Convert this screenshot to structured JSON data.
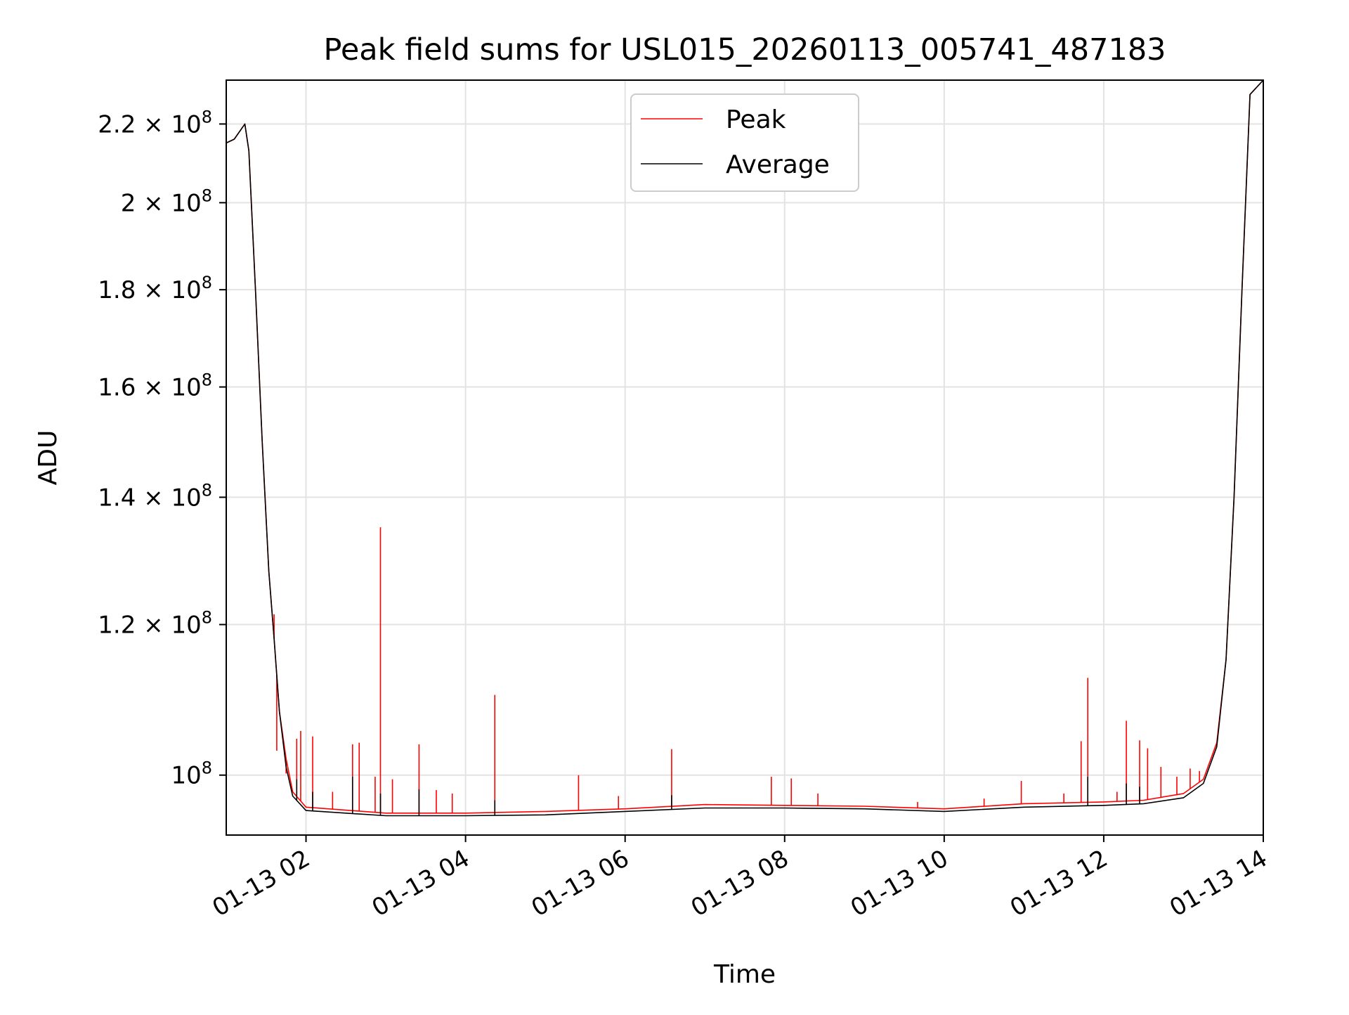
{
  "chart_data": {
    "type": "line",
    "title": "Peak field sums for USL015_20260113_005741_487183",
    "xlabel": "Time",
    "ylabel": "ADU",
    "x_domain": [
      "01-13 01:00",
      "01-13 14:00"
    ],
    "ylim": [
      93000000,
      232000000
    ],
    "y_scale": "log",
    "grid": true,
    "legend_position": "top-center",
    "x_ticks": [
      {
        "value": "01-13 02:00",
        "label": "01-13 02"
      },
      {
        "value": "01-13 04:00",
        "label": "01-13 04"
      },
      {
        "value": "01-13 06:00",
        "label": "01-13 06"
      },
      {
        "value": "01-13 08:00",
        "label": "01-13 08"
      },
      {
        "value": "01-13 10:00",
        "label": "01-13 10"
      },
      {
        "value": "01-13 12:00",
        "label": "01-13 12"
      },
      {
        "value": "01-13 14:00",
        "label": "01-13 14"
      }
    ],
    "y_ticks": [
      {
        "value": 100000000,
        "mantissa": "",
        "exponent": "8"
      },
      {
        "value": 120000000,
        "mantissa": "1.2",
        "exponent": "8"
      },
      {
        "value": 140000000,
        "mantissa": "1.4",
        "exponent": "8"
      },
      {
        "value": 160000000,
        "mantissa": "1.6",
        "exponent": "8"
      },
      {
        "value": 180000000,
        "mantissa": "1.8",
        "exponent": "8"
      },
      {
        "value": 200000000,
        "mantissa": "2",
        "exponent": "8"
      },
      {
        "value": 220000000,
        "mantissa": "2.2",
        "exponent": "8"
      }
    ],
    "series": [
      {
        "name": "Peak",
        "color": "#ff0000",
        "points": [
          [
            "01-13 01:00",
            215000000
          ],
          [
            "01-13 01:06",
            216000000
          ],
          [
            "01-13 01:12",
            219000000
          ],
          [
            "01-13 01:14",
            220000000
          ],
          [
            "01-13 01:17",
            213000000
          ],
          [
            "01-13 01:22",
            180000000
          ],
          [
            "01-13 01:27",
            150000000
          ],
          [
            "01-13 01:32",
            128000000
          ],
          [
            "01-13 01:36",
            118000000
          ],
          [
            "01-13 01:40",
            108000000
          ],
          [
            "01-13 01:45",
            102000000
          ],
          [
            "01-13 01:50",
            98000000
          ],
          [
            "01-13 02:00",
            96200000
          ],
          [
            "01-13 03:00",
            95500000
          ],
          [
            "01-13 04:00",
            95500000
          ],
          [
            "01-13 05:00",
            95700000
          ],
          [
            "01-13 06:00",
            96000000
          ],
          [
            "01-13 07:00",
            96500000
          ],
          [
            "01-13 08:00",
            96400000
          ],
          [
            "01-13 09:00",
            96300000
          ],
          [
            "01-13 10:00",
            96000000
          ],
          [
            "01-13 11:00",
            96600000
          ],
          [
            "01-13 12:00",
            96800000
          ],
          [
            "01-13 12:30",
            97000000
          ],
          [
            "01-13 13:00",
            97800000
          ],
          [
            "01-13 13:15",
            99500000
          ],
          [
            "01-13 13:25",
            104000000
          ],
          [
            "01-13 13:32",
            115000000
          ],
          [
            "01-13 13:38",
            140000000
          ],
          [
            "01-13 13:44",
            180000000
          ],
          [
            "01-13 13:50",
            228000000
          ],
          [
            "01-13 14:00",
            232000000
          ]
        ],
        "spikes": [
          [
            "01-13 01:36",
            121500000
          ],
          [
            "01-13 01:38",
            103000000
          ],
          [
            "01-13 01:45",
            100200000
          ],
          [
            "01-13 01:53",
            104500000
          ],
          [
            "01-13 01:56",
            105500000
          ],
          [
            "01-13 02:05",
            104800000
          ],
          [
            "01-13 02:20",
            98000000
          ],
          [
            "01-13 02:35",
            103800000
          ],
          [
            "01-13 02:40",
            104000000
          ],
          [
            "01-13 02:52",
            99800000
          ],
          [
            "01-13 02:56",
            135000000
          ],
          [
            "01-13 03:05",
            99500000
          ],
          [
            "01-13 03:25",
            103800000
          ],
          [
            "01-13 03:38",
            98200000
          ],
          [
            "01-13 03:50",
            97800000
          ],
          [
            "01-13 04:22",
            110200000
          ],
          [
            "01-13 05:25",
            100000000
          ],
          [
            "01-13 05:55",
            97500000
          ],
          [
            "01-13 06:35",
            103200000
          ],
          [
            "01-13 07:50",
            99800000
          ],
          [
            "01-13 08:05",
            99600000
          ],
          [
            "01-13 08:25",
            97800000
          ],
          [
            "01-13 09:40",
            96800000
          ],
          [
            "01-13 10:30",
            97200000
          ],
          [
            "01-13 10:58",
            99300000
          ],
          [
            "01-13 11:30",
            97800000
          ],
          [
            "01-13 11:43",
            104200000
          ],
          [
            "01-13 11:48",
            112500000
          ],
          [
            "01-13 12:10",
            98000000
          ],
          [
            "01-13 12:17",
            106800000
          ],
          [
            "01-13 12:27",
            104300000
          ],
          [
            "01-13 12:33",
            103300000
          ],
          [
            "01-13 12:43",
            101000000
          ],
          [
            "01-13 12:55",
            99800000
          ],
          [
            "01-13 13:05",
            100800000
          ],
          [
            "01-13 13:12",
            100500000
          ]
        ]
      },
      {
        "name": "Average",
        "color": "#000000",
        "points": [
          [
            "01-13 01:00",
            215000000
          ],
          [
            "01-13 01:06",
            216000000
          ],
          [
            "01-13 01:12",
            219000000
          ],
          [
            "01-13 01:14",
            220000000
          ],
          [
            "01-13 01:17",
            213000000
          ],
          [
            "01-13 01:22",
            180000000
          ],
          [
            "01-13 01:27",
            150000000
          ],
          [
            "01-13 01:32",
            128000000
          ],
          [
            "01-13 01:36",
            118000000
          ],
          [
            "01-13 01:40",
            108000000
          ],
          [
            "01-13 01:45",
            101000000
          ],
          [
            "01-13 01:50",
            97500000
          ],
          [
            "01-13 02:00",
            95800000
          ],
          [
            "01-13 03:00",
            95200000
          ],
          [
            "01-13 04:00",
            95200000
          ],
          [
            "01-13 05:00",
            95300000
          ],
          [
            "01-13 06:00",
            95700000
          ],
          [
            "01-13 07:00",
            96100000
          ],
          [
            "01-13 08:00",
            96100000
          ],
          [
            "01-13 09:00",
            96000000
          ],
          [
            "01-13 10:00",
            95700000
          ],
          [
            "01-13 11:00",
            96200000
          ],
          [
            "01-13 12:00",
            96400000
          ],
          [
            "01-13 12:30",
            96600000
          ],
          [
            "01-13 13:00",
            97300000
          ],
          [
            "01-13 13:15",
            99000000
          ],
          [
            "01-13 13:25",
            103500000
          ],
          [
            "01-13 13:32",
            115000000
          ],
          [
            "01-13 13:38",
            140000000
          ],
          [
            "01-13 13:44",
            180000000
          ],
          [
            "01-13 13:50",
            228000000
          ],
          [
            "01-13 14:00",
            232000000
          ]
        ],
        "spikes": [
          [
            "01-13 01:53",
            99500000
          ],
          [
            "01-13 02:05",
            98000000
          ],
          [
            "01-13 02:35",
            99800000
          ],
          [
            "01-13 02:56",
            97800000
          ],
          [
            "01-13 03:25",
            98300000
          ],
          [
            "01-13 04:22",
            97000000
          ],
          [
            "01-13 06:35",
            97600000
          ],
          [
            "01-13 11:48",
            99800000
          ],
          [
            "01-13 12:17",
            99000000
          ],
          [
            "01-13 12:27",
            98600000
          ]
        ]
      }
    ]
  }
}
